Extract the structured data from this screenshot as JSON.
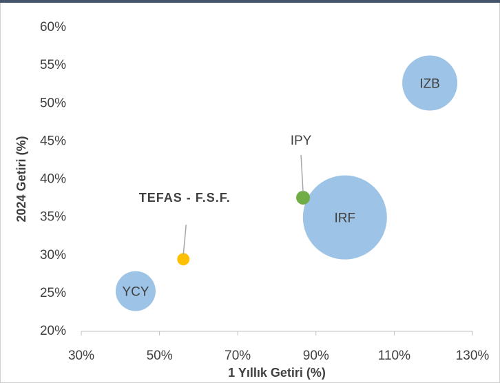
{
  "chart_data": {
    "type": "bubble",
    "x_label": "1 Yıllık Getiri (%)",
    "y_label": "2024 Getiri (%)",
    "xlim": [
      30,
      130
    ],
    "ylim": [
      20,
      60
    ],
    "xticks": [
      {
        "value": 30,
        "label": "30%"
      },
      {
        "value": 50,
        "label": "50%"
      },
      {
        "value": 70,
        "label": "70%"
      },
      {
        "value": 90,
        "label": "90%"
      },
      {
        "value": 110,
        "label": "110%"
      },
      {
        "value": 130,
        "label": "130%"
      }
    ],
    "yticks": [
      {
        "value": 20,
        "label": "20%"
      },
      {
        "value": 25,
        "label": "25%"
      },
      {
        "value": 30,
        "label": "30%"
      },
      {
        "value": 35,
        "label": "35%"
      },
      {
        "value": 40,
        "label": "40%"
      },
      {
        "value": 45,
        "label": "45%"
      },
      {
        "value": 50,
        "label": "50%"
      },
      {
        "value": 55,
        "label": "55%"
      },
      {
        "value": 60,
        "label": "60%"
      }
    ],
    "points": [
      {
        "name": "IZB",
        "x": 119.1,
        "y": 52.7,
        "size": 16,
        "color": "#9dc3e6"
      },
      {
        "name": "IRF",
        "x": 97.4,
        "y": 35.0,
        "size": 37.2,
        "color": "#9dc3e6"
      },
      {
        "name": "IPY",
        "x": 86.7,
        "y": 37.6,
        "size": 1,
        "color": "#70ad47"
      },
      {
        "name": "TEFAS - F.S.F.",
        "x": 56.1,
        "y": 29.5,
        "size": 0.8,
        "color": "#ffc000"
      },
      {
        "name": "YCY",
        "x": 43.9,
        "y": 25.3,
        "size": 8.4,
        "color": "#9dc3e6"
      }
    ]
  }
}
